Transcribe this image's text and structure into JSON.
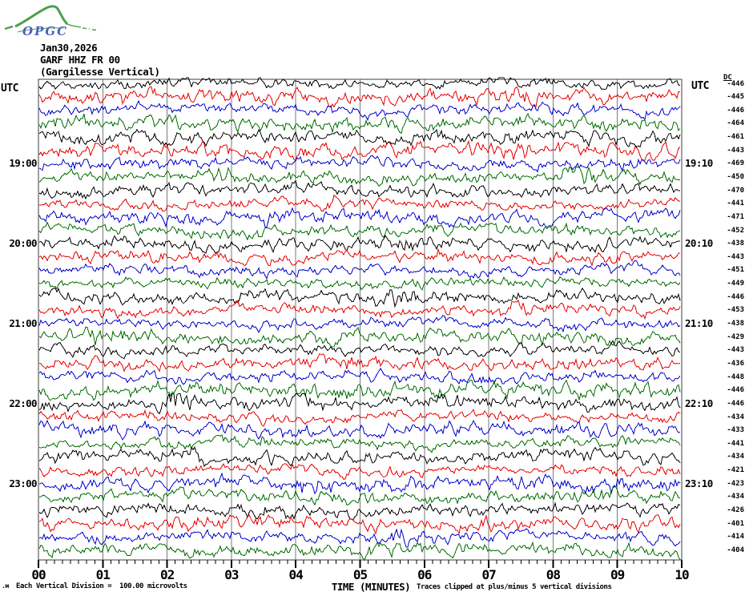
{
  "logo": {
    "text": "OPGC",
    "text_color": "#4a5fc0",
    "swoosh_color": "#4aa04a"
  },
  "title": {
    "date": "Jan30,2026",
    "station": "GARF HHZ FR 00",
    "location": "(Gargilesse Vertical)"
  },
  "labels": {
    "utc_left": "UTC",
    "utc_right": "UTC",
    "dc_header": "DC",
    "x_axis_title": "TIME (MINUTES)",
    "scale_note": "Each Vertical Division =  100.00 microvolts",
    "clip_note": "Traces clipped at plus/minus 5 vertical divisions",
    "footer_mark": ".м"
  },
  "chart_data": {
    "type": "line",
    "subtype": "helicorder-seismogram",
    "title": "GARF HHZ FR 00 (Gargilesse Vertical) Jan30,2026",
    "xlabel": "TIME (MINUTES)",
    "x_range_minutes": [
      0,
      10
    ],
    "x_tick_labels": [
      "00",
      "01",
      "02",
      "03",
      "04",
      "05",
      "06",
      "07",
      "08",
      "09",
      "10"
    ],
    "minor_ticks_per_minute": 8,
    "grid": true,
    "grid_color": "#7a7a7a",
    "frame_color": "#3c3c3c",
    "row_count": 36,
    "minutes_per_row": 10,
    "microvolts_per_division": "100.00",
    "clip_divisions": 5,
    "trace_colors": {
      "black": "#000000",
      "red": "#e60000",
      "blue": "#0000cc",
      "green": "#006b00"
    },
    "left_time_labels": [
      {
        "row": 7,
        "label": "19:00"
      },
      {
        "row": 13,
        "label": "20:00"
      },
      {
        "row": 19,
        "label": "21:00"
      },
      {
        "row": 25,
        "label": "22:00"
      },
      {
        "row": 31,
        "label": "23:00"
      }
    ],
    "right_time_labels": [
      {
        "row": 7,
        "label": "19:10"
      },
      {
        "row": 13,
        "label": "20:10"
      },
      {
        "row": 19,
        "label": "21:10"
      },
      {
        "row": 25,
        "label": "22:10"
      },
      {
        "row": 31,
        "label": "23:10"
      }
    ],
    "rows": [
      {
        "color": "black",
        "dc": -446
      },
      {
        "color": "red",
        "dc": -445
      },
      {
        "color": "blue",
        "dc": -446
      },
      {
        "color": "green",
        "dc": -464
      },
      {
        "color": "black",
        "dc": -461
      },
      {
        "color": "red",
        "dc": -443
      },
      {
        "color": "blue",
        "dc": -469
      },
      {
        "color": "green",
        "dc": -450
      },
      {
        "color": "black",
        "dc": -470
      },
      {
        "color": "red",
        "dc": -441
      },
      {
        "color": "blue",
        "dc": -471
      },
      {
        "color": "green",
        "dc": -452
      },
      {
        "color": "black",
        "dc": -438
      },
      {
        "color": "red",
        "dc": -443
      },
      {
        "color": "blue",
        "dc": -451
      },
      {
        "color": "green",
        "dc": -449
      },
      {
        "color": "black",
        "dc": -446
      },
      {
        "color": "red",
        "dc": -453
      },
      {
        "color": "blue",
        "dc": -438
      },
      {
        "color": "green",
        "dc": -429
      },
      {
        "color": "black",
        "dc": -443
      },
      {
        "color": "red",
        "dc": -436
      },
      {
        "color": "blue",
        "dc": -448
      },
      {
        "color": "green",
        "dc": -446
      },
      {
        "color": "black",
        "dc": -446
      },
      {
        "color": "red",
        "dc": -434
      },
      {
        "color": "blue",
        "dc": -433
      },
      {
        "color": "green",
        "dc": -441
      },
      {
        "color": "black",
        "dc": -434
      },
      {
        "color": "red",
        "dc": -421
      },
      {
        "color": "blue",
        "dc": -423
      },
      {
        "color": "green",
        "dc": -434
      },
      {
        "color": "black",
        "dc": -426
      },
      {
        "color": "red",
        "dc": -401
      },
      {
        "color": "blue",
        "dc": -414
      },
      {
        "color": "green",
        "dc": -404
      }
    ]
  }
}
